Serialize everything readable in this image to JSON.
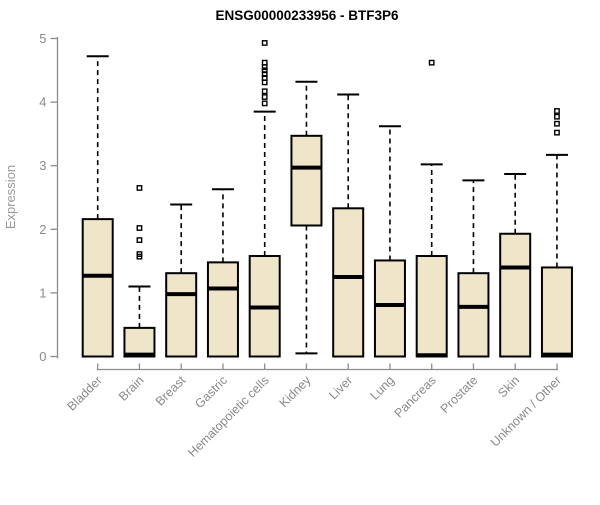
{
  "chart_data": {
    "type": "boxplot",
    "title": "ENSG00000233956 - BTF3P6",
    "xlabel": "",
    "ylabel": "Expression",
    "ylim": [
      0,
      5
    ],
    "yticks": [
      0,
      1,
      2,
      3,
      4,
      5
    ],
    "grid": false,
    "legend": false,
    "categories": [
      "Bladder",
      "Brain",
      "Breast",
      "Gastric",
      "Hematopoietic cells",
      "Kidney",
      "Liver",
      "Lung",
      "Pancreas",
      "Prostate",
      "Skin",
      "Unknown / Other"
    ],
    "series": [
      {
        "label": "Bladder",
        "whislo": 0,
        "q1": 0,
        "med": 1.27,
        "q3": 2.16,
        "whishi": 4.72,
        "outliers": []
      },
      {
        "label": "Brain",
        "whislo": 0,
        "q1": 0,
        "med": 0.03,
        "q3": 0.45,
        "whishi": 1.1,
        "outliers": [
          1.57,
          1.61,
          1.83,
          2.02,
          2.65
        ]
      },
      {
        "label": "Breast",
        "whislo": 0,
        "q1": 0,
        "med": 0.98,
        "q3": 1.31,
        "whishi": 2.39,
        "outliers": []
      },
      {
        "label": "Gastric",
        "whislo": 0,
        "q1": 0,
        "med": 1.07,
        "q3": 1.48,
        "whishi": 2.63,
        "outliers": []
      },
      {
        "label": "Hematopoietic cells",
        "whislo": 0,
        "q1": 0,
        "med": 0.77,
        "q3": 1.58,
        "whishi": 3.85,
        "outliers": [
          3.98,
          4.08,
          4.17,
          4.31,
          4.38,
          4.44,
          4.5,
          4.55,
          4.62,
          4.93
        ]
      },
      {
        "label": "Kidney",
        "whislo": 0.05,
        "q1": 2.06,
        "med": 2.97,
        "q3": 3.47,
        "whishi": 4.32,
        "outliers": []
      },
      {
        "label": "Liver",
        "whislo": 0,
        "q1": 0,
        "med": 1.25,
        "q3": 2.33,
        "whishi": 4.12,
        "outliers": []
      },
      {
        "label": "Lung",
        "whislo": 0,
        "q1": 0,
        "med": 0.81,
        "q3": 1.51,
        "whishi": 3.62,
        "outliers": []
      },
      {
        "label": "Pancreas",
        "whislo": 0,
        "q1": 0,
        "med": 0.02,
        "q3": 1.58,
        "whishi": 3.02,
        "outliers": [
          4.62
        ]
      },
      {
        "label": "Prostate",
        "whislo": 0,
        "q1": 0,
        "med": 0.78,
        "q3": 1.31,
        "whishi": 2.77,
        "outliers": []
      },
      {
        "label": "Skin",
        "whislo": 0,
        "q1": 0,
        "med": 1.4,
        "q3": 1.93,
        "whishi": 2.87,
        "outliers": []
      },
      {
        "label": "Unknown / Other",
        "whislo": 0,
        "q1": 0,
        "med": 0.03,
        "q3": 1.4,
        "whishi": 3.17,
        "outliers": [
          3.52,
          3.66,
          3.77,
          3.86
        ]
      }
    ],
    "colors": {
      "box_fill": "#efe6c9",
      "box_stroke": "#000000",
      "median": "#000000",
      "whisker": "#000000",
      "axis": "#8c8c8c",
      "tick_label": "#8a8a8a",
      "category_label": "#8a8a8a",
      "title": "#000000",
      "background": "#ffffff"
    }
  }
}
